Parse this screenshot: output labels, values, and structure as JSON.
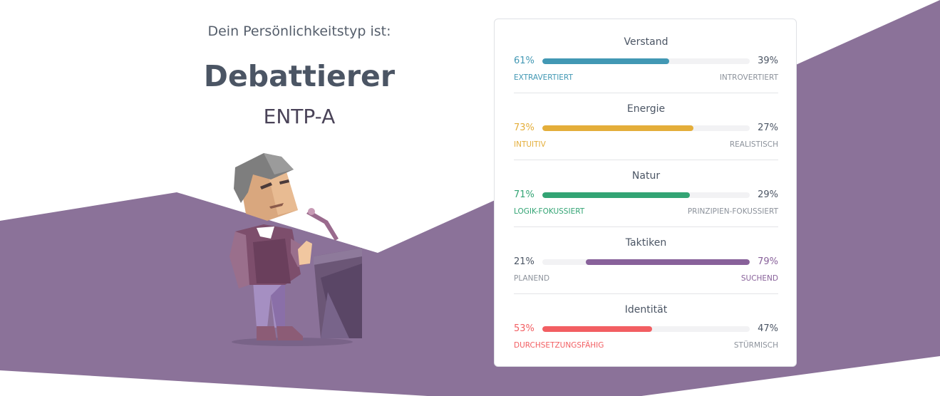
{
  "result": {
    "intro": "Dein Persönlichkeitstyp ist:",
    "type_name": "Debattierer",
    "type_code": "ENTP-A"
  },
  "colors": {
    "background_band": "#8b7299",
    "verstand": "#4298b4",
    "energie": "#e4ae3a",
    "natur": "#33a474",
    "taktiken": "#88619a",
    "identitaet": "#f25e62"
  },
  "traits": [
    {
      "title": "Verstand",
      "left_pct": "61%",
      "right_pct": "39%",
      "left_label": "EXTRAVERTIERT",
      "right_label": "INTROVERTIERT",
      "dominant": "left",
      "value": 61,
      "color": "#4298b4"
    },
    {
      "title": "Energie",
      "left_pct": "73%",
      "right_pct": "27%",
      "left_label": "INTUITIV",
      "right_label": "REALISTISCH",
      "dominant": "left",
      "value": 73,
      "color": "#e4ae3a"
    },
    {
      "title": "Natur",
      "left_pct": "71%",
      "right_pct": "29%",
      "left_label": "LOGIK-FOKUSSIERT",
      "right_label": "PRINZIPIEN-FOKUSSIERT",
      "dominant": "left",
      "value": 71,
      "color": "#33a474"
    },
    {
      "title": "Taktiken",
      "left_pct": "21%",
      "right_pct": "79%",
      "left_label": "PLANEND",
      "right_label": "SUCHEND",
      "dominant": "right",
      "value": 79,
      "color": "#88619a"
    },
    {
      "title": "Identität",
      "left_pct": "53%",
      "right_pct": "47%",
      "left_label": "DURCHSETZUNGSFÄHIG",
      "right_label": "STÜRMISCH",
      "dominant": "left",
      "value": 53,
      "color": "#f25e62"
    }
  ]
}
